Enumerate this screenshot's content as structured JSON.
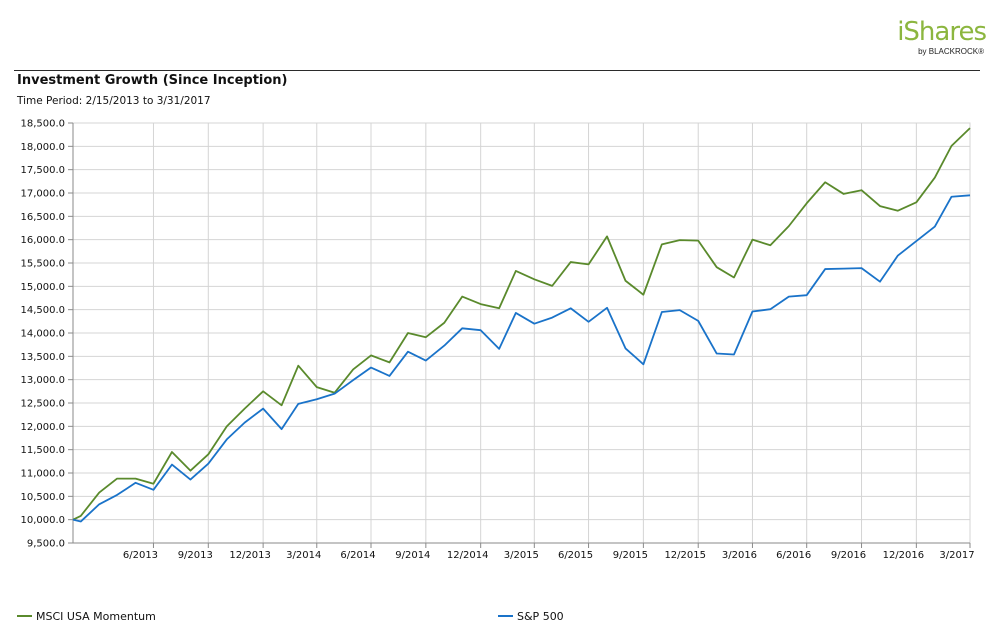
{
  "brand": {
    "name": "iShares",
    "tagline": "by BLACKROCK®"
  },
  "header": {
    "title": "Investment Growth (Since Inception)",
    "subtitle": "Time Period: 2/15/2013 to 3/31/2017"
  },
  "colors": {
    "momentum": "#5a8a2c",
    "sp500": "#1a73c9",
    "grid": "#d4d4d4",
    "axis": "#8a8a8a"
  },
  "legend": [
    {
      "label": "MSCI USA Momentum",
      "color": "#5a8a2c"
    },
    {
      "label": "S&P 500",
      "color": "#1a73c9"
    }
  ],
  "chart_data": {
    "type": "line",
    "title": "Investment Growth (Since Inception)",
    "xlabel": "",
    "ylabel": "",
    "xlim": [
      "2/15/2013",
      "3/31/2017"
    ],
    "ylim": [
      9500,
      18500
    ],
    "yticks": [
      9500,
      10000,
      10500,
      11000,
      11500,
      12000,
      12500,
      13000,
      13500,
      14000,
      14500,
      15000,
      15500,
      16000,
      16500,
      17000,
      17500,
      18000,
      18500
    ],
    "ytick_labels": [
      "9,500.0",
      "10,000.0",
      "10,500.0",
      "11,000.0",
      "11,500.0",
      "12,000.0",
      "12,500.0",
      "13,000.0",
      "13,500.0",
      "14,000.0",
      "14,500.0",
      "15,000.0",
      "15,500.0",
      "16,000.0",
      "16,500.0",
      "17,000.0",
      "17,500.0",
      "18,000.0",
      "18,500.0"
    ],
    "xtick_labels": [
      "6/2013",
      "9/2013",
      "12/2013",
      "3/2014",
      "6/2014",
      "9/2014",
      "12/2014",
      "3/2015",
      "6/2015",
      "9/2015",
      "12/2015",
      "3/2016",
      "6/2016",
      "9/2016",
      "12/2016",
      "3/2017"
    ],
    "grid": true,
    "legend_position": "bottom",
    "x": [
      "2/15/2013",
      "2/28/2013",
      "3/31/2013",
      "4/30/2013",
      "5/31/2013",
      "6/30/2013",
      "7/31/2013",
      "8/31/2013",
      "9/30/2013",
      "10/31/2013",
      "11/30/2013",
      "12/31/2013",
      "1/31/2014",
      "2/28/2014",
      "3/31/2014",
      "4/30/2014",
      "5/31/2014",
      "6/30/2014",
      "7/31/2014",
      "8/31/2014",
      "9/30/2014",
      "10/31/2014",
      "11/30/2014",
      "12/31/2014",
      "1/31/2015",
      "2/28/2015",
      "3/31/2015",
      "4/30/2015",
      "5/31/2015",
      "6/30/2015",
      "7/31/2015",
      "8/31/2015",
      "9/30/2015",
      "10/31/2015",
      "11/30/2015",
      "12/31/2015",
      "1/31/2016",
      "2/29/2016",
      "3/31/2016",
      "4/30/2016",
      "5/31/2016",
      "6/30/2016",
      "7/31/2016",
      "8/31/2016",
      "9/30/2016",
      "10/31/2016",
      "11/30/2016",
      "12/31/2016",
      "1/31/2017",
      "2/28/2017",
      "3/31/2017"
    ],
    "series": [
      {
        "name": "MSCI USA Momentum",
        "color": "#5a8a2c",
        "values": [
          10000,
          10080,
          10580,
          10880,
          10880,
          10770,
          11450,
          11050,
          11400,
          12000,
          12380,
          12750,
          12450,
          13300,
          12840,
          12720,
          13220,
          13520,
          13370,
          14000,
          13910,
          14220,
          14780,
          14620,
          14530,
          15330,
          15150,
          15010,
          15520,
          15470,
          16070,
          15120,
          14820,
          15900,
          15990,
          15980,
          15410,
          15190,
          16000,
          15880,
          16290,
          16780,
          17230,
          16980,
          17060,
          16720,
          16620,
          16800,
          17330,
          18010,
          18390
        ]
      },
      {
        "name": "S&P 500",
        "color": "#1a73c9",
        "values": [
          10000,
          9960,
          10330,
          10530,
          10790,
          10640,
          11180,
          10860,
          11200,
          11720,
          12080,
          12380,
          11940,
          12480,
          12580,
          12700,
          12990,
          13260,
          13080,
          13600,
          13410,
          13730,
          14100,
          14060,
          13660,
          14430,
          14200,
          14330,
          14530,
          14240,
          14540,
          13670,
          13330,
          14450,
          14490,
          14260,
          13560,
          13540,
          14460,
          14510,
          14780,
          14810,
          15370,
          15380,
          15390,
          15100,
          15660,
          15970,
          16280,
          16920,
          16950
        ]
      }
    ]
  }
}
